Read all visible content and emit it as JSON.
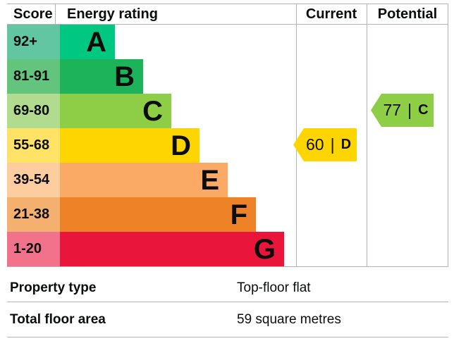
{
  "chart_data": {
    "type": "bar",
    "title": "Energy efficiency rating chart",
    "columns": [
      "Score",
      "Energy rating",
      "Current",
      "Potential"
    ],
    "bands": [
      {
        "letter": "A",
        "score": "92+",
        "bar_color": "#00c781",
        "score_color": "#62c6a2"
      },
      {
        "letter": "B",
        "score": "81-91",
        "bar_color": "#1cb35b",
        "score_color": "#63c57d"
      },
      {
        "letter": "C",
        "score": "69-80",
        "bar_color": "#8dce46",
        "score_color": "#b1dc8f"
      },
      {
        "letter": "D",
        "score": "55-68",
        "bar_color": "#ffd500",
        "score_color": "#ffe266"
      },
      {
        "letter": "E",
        "score": "39-54",
        "bar_color": "#fbaa65",
        "score_color": "#fdcc9f"
      },
      {
        "letter": "F",
        "score": "21-38",
        "bar_color": "#ee8226",
        "score_color": "#f4b06e"
      },
      {
        "letter": "G",
        "score": "1-20",
        "bar_color": "#e9153b",
        "score_color": "#f2728b"
      }
    ],
    "current": {
      "value": "60",
      "separator": "|",
      "band": "D",
      "color": "#ffd500"
    },
    "potential": {
      "value": "77",
      "separator": "|",
      "band": "C",
      "color": "#8dce46"
    }
  },
  "header": {
    "score": "Score",
    "energy_rating": "Energy rating",
    "current": "Current",
    "potential": "Potential"
  },
  "properties": {
    "rows": [
      {
        "label": "Property type",
        "value": "Top-floor flat"
      },
      {
        "label": "Total floor area",
        "value": "59 square metres"
      }
    ]
  },
  "colors": {
    "border": "#b1b4b6",
    "text": "#0b0c0c"
  }
}
